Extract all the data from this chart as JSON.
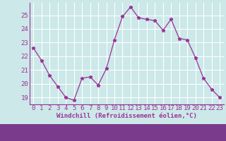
{
  "x": [
    0,
    1,
    2,
    3,
    4,
    5,
    6,
    7,
    8,
    9,
    10,
    11,
    12,
    13,
    14,
    15,
    16,
    17,
    18,
    19,
    20,
    21,
    22,
    23
  ],
  "y": [
    22.6,
    21.7,
    20.6,
    19.8,
    19.0,
    18.8,
    20.4,
    20.5,
    19.9,
    21.1,
    23.2,
    24.9,
    25.6,
    24.8,
    24.7,
    24.6,
    23.9,
    24.7,
    23.3,
    23.2,
    21.9,
    20.4,
    19.6,
    19.0
  ],
  "line_color": "#993399",
  "marker": "*",
  "marker_size": 3.5,
  "bg_color": "#cce8e8",
  "grid_color": "#ffffff",
  "xlabel": "Windchill (Refroidissement éolien,°C)",
  "yticks": [
    19,
    20,
    21,
    22,
    23,
    24,
    25
  ],
  "ylim": [
    18.5,
    25.9
  ],
  "xlim": [
    -0.5,
    23.5
  ],
  "xlabel_fontsize": 6.5,
  "tick_fontsize": 6.5,
  "tick_color": "#993399",
  "label_color": "#993399",
  "spine_color": "#993399",
  "bottom_bar_color": "#7a3b8c",
  "bottom_bar_height": 0.12
}
